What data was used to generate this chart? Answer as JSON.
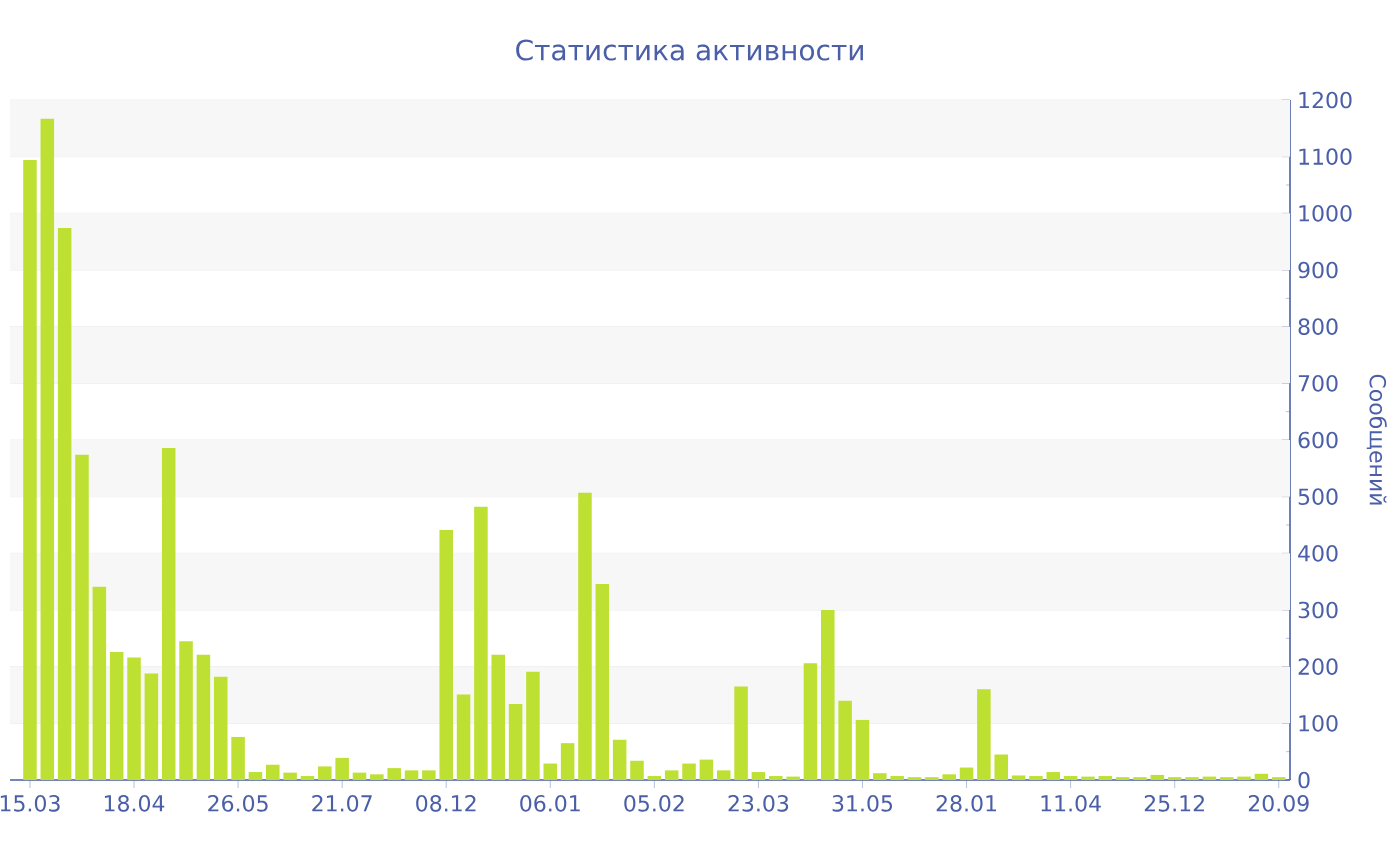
{
  "chart_data": {
    "type": "bar",
    "title": "Статистика активности",
    "ylabel": "Сообщений",
    "categories": [
      "15.03",
      null,
      null,
      null,
      null,
      null,
      "18.04",
      null,
      null,
      null,
      null,
      null,
      "26.05",
      null,
      null,
      null,
      null,
      null,
      "21.07",
      null,
      null,
      null,
      null,
      null,
      "08.12",
      null,
      null,
      null,
      null,
      null,
      "06.01",
      null,
      null,
      null,
      null,
      null,
      "05.02",
      null,
      null,
      null,
      null,
      null,
      "23.03",
      null,
      null,
      null,
      null,
      null,
      "31.05",
      null,
      null,
      null,
      null,
      null,
      "28.01",
      null,
      null,
      null,
      null,
      null,
      "11.04",
      null,
      null,
      null,
      null,
      null,
      "25.12",
      null,
      null,
      null,
      null,
      null,
      "20.09"
    ],
    "values": [
      1094,
      1167,
      974,
      574,
      341,
      226,
      216,
      188,
      586,
      245,
      221,
      182,
      76,
      14,
      27,
      13,
      7,
      24,
      39,
      13,
      10,
      21,
      17,
      17,
      441,
      151,
      482,
      221,
      134,
      191,
      29,
      65,
      507,
      346,
      71,
      34,
      7,
      17,
      29,
      36,
      17,
      165,
      14,
      7,
      6,
      206,
      300,
      140,
      106,
      12,
      7,
      5,
      5,
      10,
      22,
      160,
      45,
      8,
      7,
      14,
      7,
      6,
      7,
      5,
      5,
      9,
      5,
      5,
      6,
      5,
      6,
      11,
      5
    ],
    "color": "#bde032",
    "ylim": [
      0,
      1200
    ],
    "yticks": [
      0,
      100,
      200,
      300,
      400,
      500,
      600,
      700,
      800,
      900,
      1000,
      1100,
      1200
    ],
    "grid": "y"
  }
}
